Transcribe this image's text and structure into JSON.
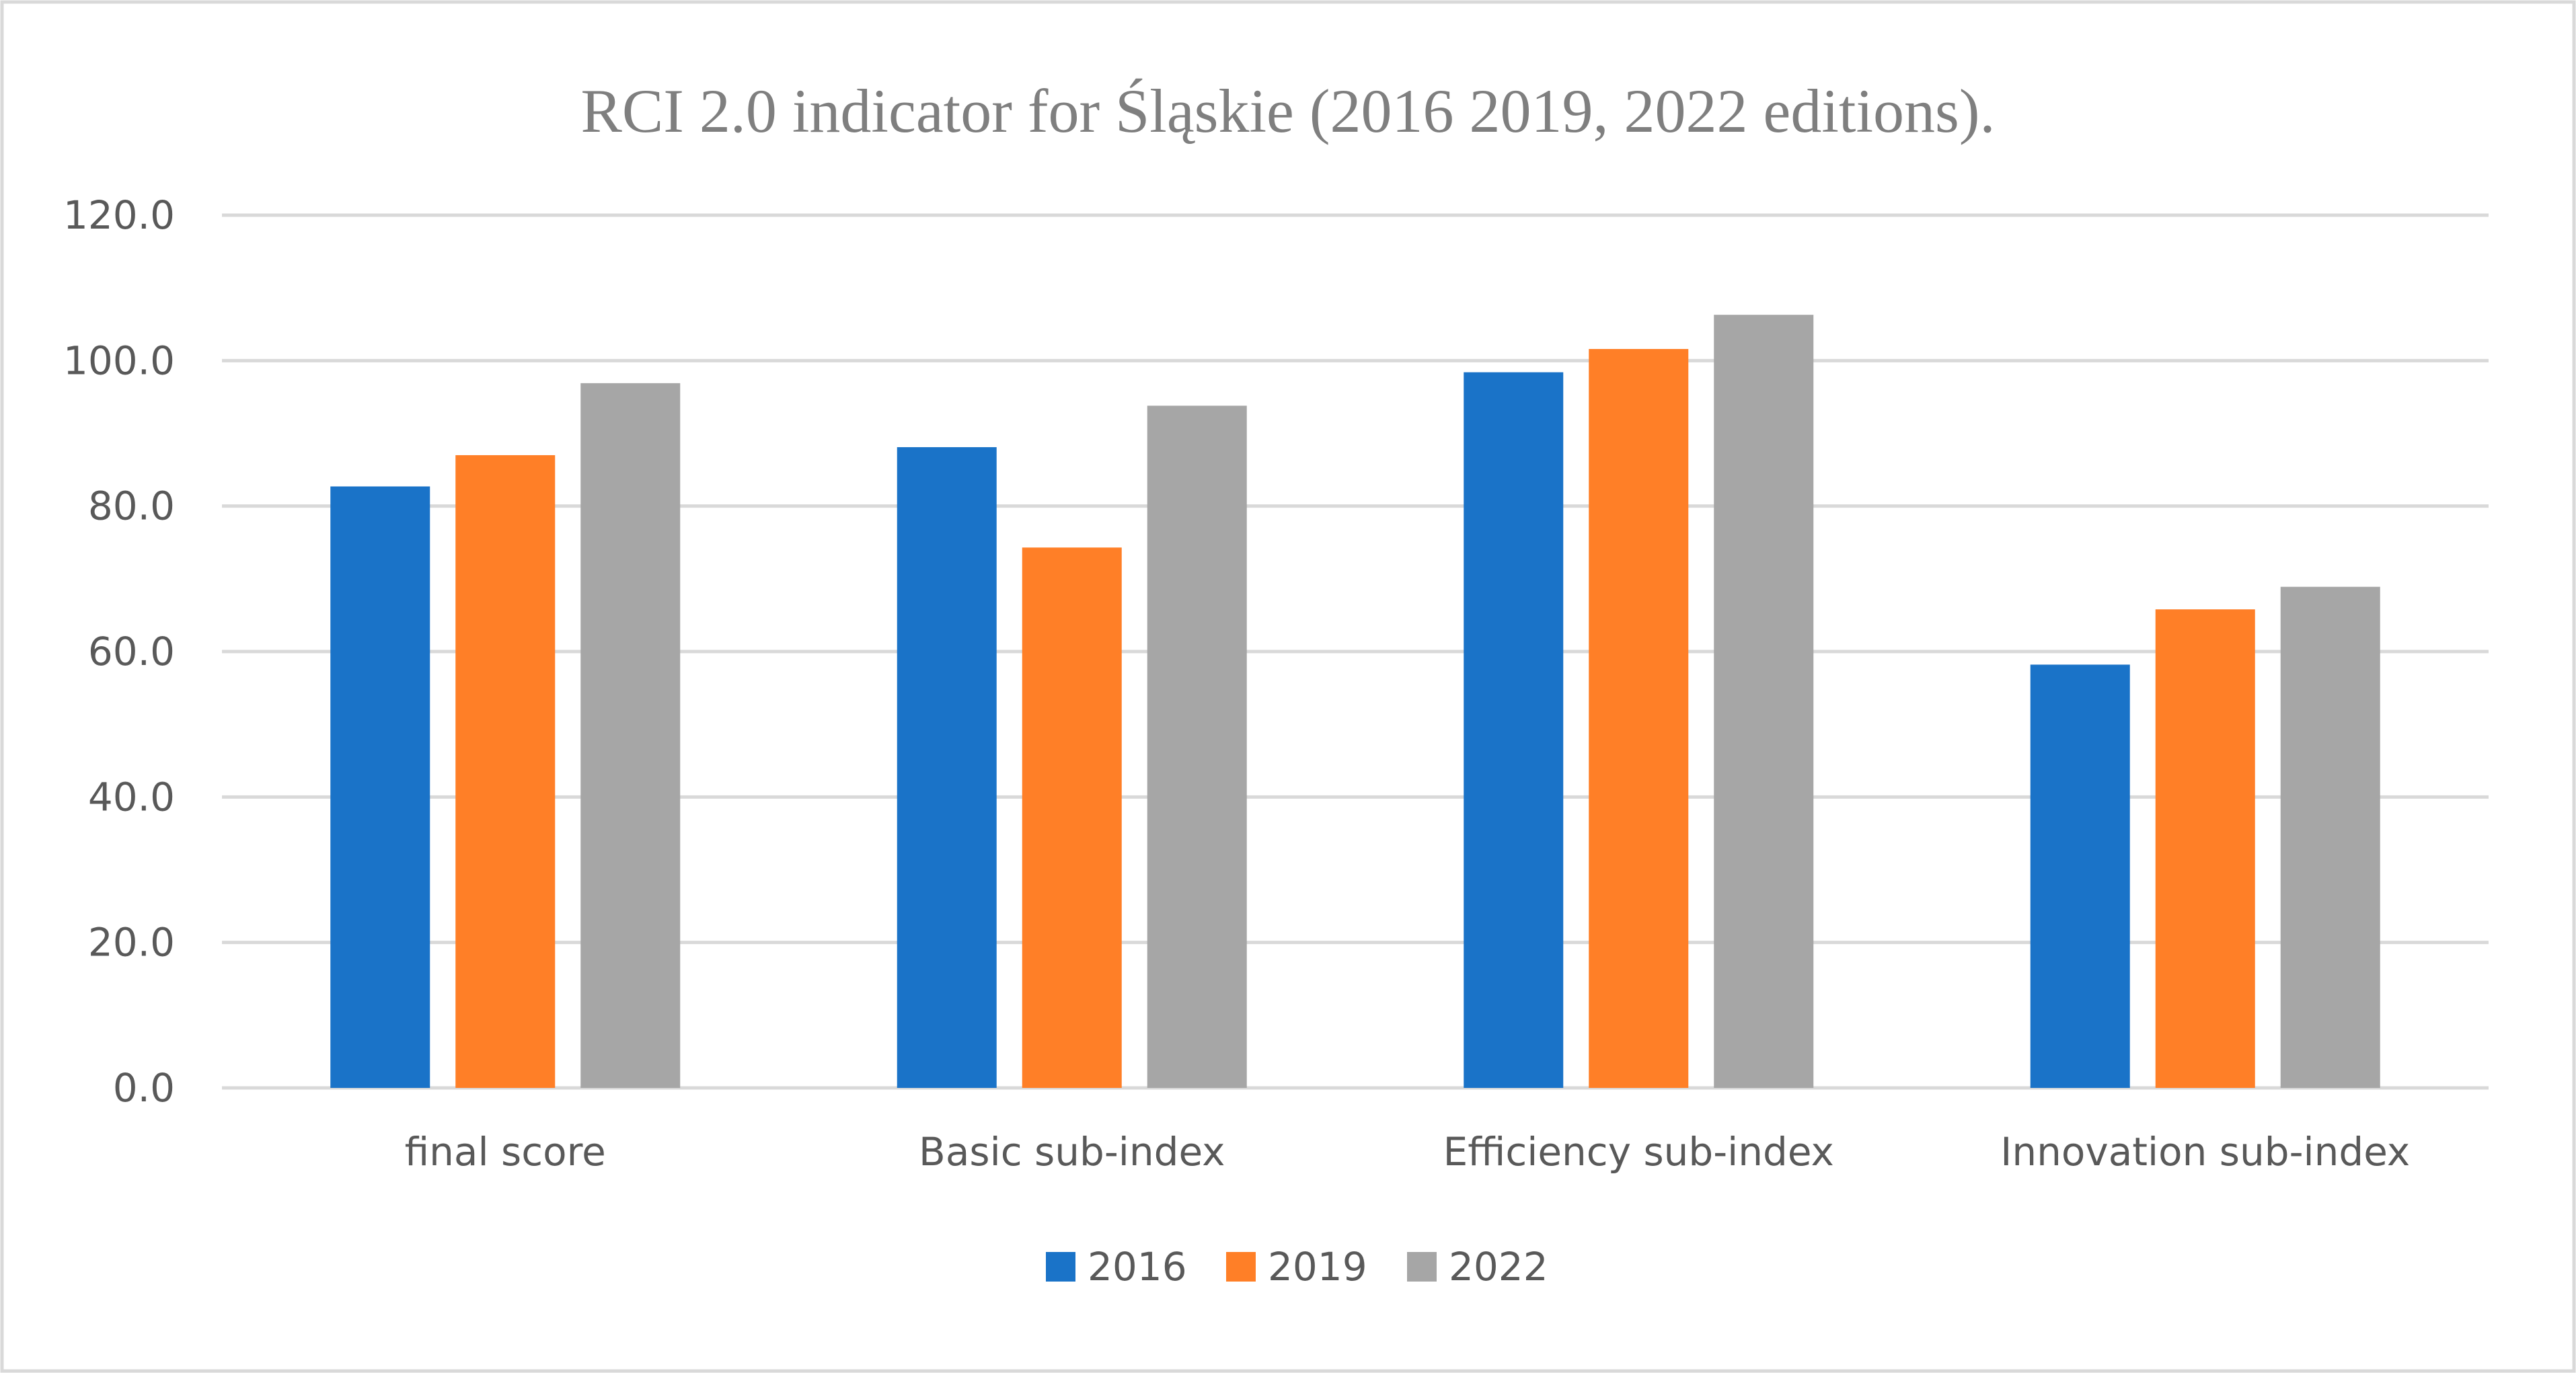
{
  "chart_data": {
    "type": "bar",
    "title": "RCI 2.0 indicator for Śląskie (2016 2019, 2022 editions).",
    "categories": [
      "final score",
      "Basic sub-index",
      "Efficiency sub-index",
      "Innovation sub-index"
    ],
    "series": [
      {
        "name": "2016",
        "color": "#1a73c8",
        "values": [
          82.7,
          88.1,
          98.4,
          58.2
        ]
      },
      {
        "name": "2019",
        "color": "#ff7f27",
        "values": [
          87.0,
          74.3,
          101.6,
          65.8
        ]
      },
      {
        "name": "2022",
        "color": "#a6a6a6",
        "values": [
          96.9,
          93.8,
          106.3,
          68.9
        ]
      }
    ],
    "ylim": [
      0,
      120
    ],
    "yticks": [
      "0.0",
      "20.0",
      "40.0",
      "60.0",
      "80.0",
      "100.0",
      "120.0"
    ],
    "ytick_values": [
      0,
      20,
      40,
      60,
      80,
      100,
      120
    ],
    "xlabel": "",
    "ylabel": "",
    "grid": true,
    "legend_position": "bottom"
  }
}
